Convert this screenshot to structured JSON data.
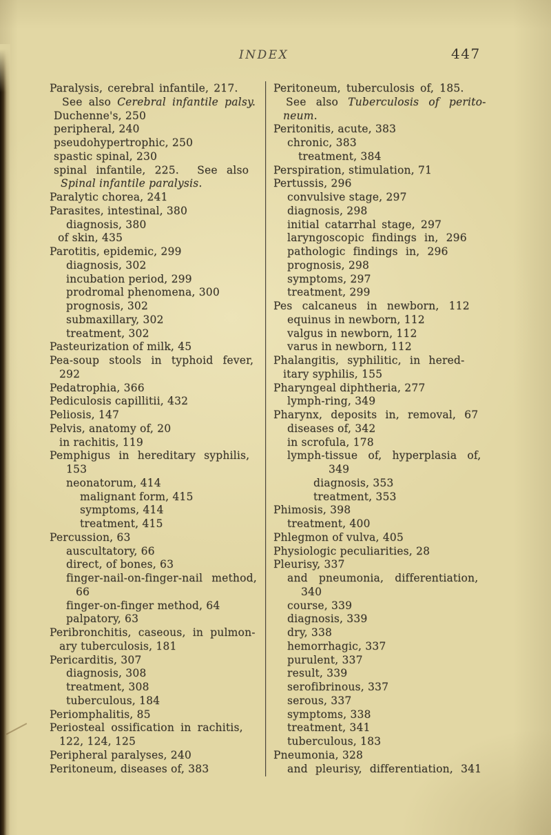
{
  "header": {
    "title": "INDEX",
    "page_number": "447"
  },
  "colors": {
    "paper": "#e2d7a4",
    "ink": "#3a352b",
    "divider": "#4a463b",
    "edge": "#181007"
  },
  "columns": {
    "left": [
      {
        "ind": 0,
        "ws": 2,
        "seg": [
          "Paralysis, cerebral infantile, 217."
        ]
      },
      {
        "ind": 18,
        "ws": 4,
        "seg": [
          "See also ",
          {
            "t": "Cerebral infantile palsy.",
            "i": true
          }
        ]
      },
      {
        "ind": 6,
        "seg": [
          "Duchenne's, 250"
        ]
      },
      {
        "ind": 6,
        "seg": [
          "peripheral, 240"
        ]
      },
      {
        "ind": 6,
        "seg": [
          "pseudohypertrophic, 250"
        ]
      },
      {
        "ind": 6,
        "seg": [
          "spastic spinal, 230"
        ]
      },
      {
        "ind": 6,
        "ws": 8,
        "seg": [
          "spinal infantile, 225.  See also"
        ]
      },
      {
        "ind": 16,
        "seg": [
          {
            "t": "Spinal infantile paralysis.",
            "i": true
          }
        ]
      },
      {
        "ind": 0,
        "seg": [
          "Paralytic chorea, 241"
        ]
      },
      {
        "ind": 0,
        "seg": [
          "Parasites, intestinal, 380"
        ]
      },
      {
        "ind": 24,
        "seg": [
          "diagnosis, 380"
        ]
      },
      {
        "ind": 12,
        "seg": [
          "of skin, 435"
        ]
      },
      {
        "ind": 0,
        "seg": [
          "Parotitis, epidemic, 299"
        ]
      },
      {
        "ind": 24,
        "seg": [
          "diagnosis, 302"
        ]
      },
      {
        "ind": 24,
        "seg": [
          "incubation period, 299"
        ]
      },
      {
        "ind": 24,
        "seg": [
          "prodromal phenomena, 300"
        ]
      },
      {
        "ind": 24,
        "seg": [
          "prognosis, 302"
        ]
      },
      {
        "ind": 24,
        "seg": [
          "submaxillary, 302"
        ]
      },
      {
        "ind": 24,
        "seg": [
          "treatment, 302"
        ]
      },
      {
        "ind": 0,
        "seg": [
          "Pasteurization of milk, 45"
        ]
      },
      {
        "ind": 0,
        "ws": 9,
        "seg": [
          "Pea-soup stools in typhoid fever,"
        ]
      },
      {
        "ind": 14,
        "seg": [
          "292"
        ]
      },
      {
        "ind": 0,
        "seg": [
          "Pedatrophia, 366"
        ]
      },
      {
        "ind": 0,
        "seg": [
          "Pediculosis capillitii, 432"
        ]
      },
      {
        "ind": 0,
        "seg": [
          "Peliosis, 147"
        ]
      },
      {
        "ind": 0,
        "seg": [
          "Pelvis, anatomy of, 20"
        ]
      },
      {
        "ind": 14,
        "seg": [
          "in rachitis, 119"
        ]
      },
      {
        "ind": 0,
        "ws": 7,
        "seg": [
          "Pemphigus in hereditary syphilis,"
        ]
      },
      {
        "ind": 24,
        "seg": [
          "153"
        ]
      },
      {
        "ind": 24,
        "seg": [
          "neonatorum, 414"
        ]
      },
      {
        "ind": 44,
        "seg": [
          "malignant form, 415"
        ]
      },
      {
        "ind": 44,
        "seg": [
          "symptoms, 414"
        ]
      },
      {
        "ind": 44,
        "seg": [
          "treatment, 415"
        ]
      },
      {
        "ind": 0,
        "seg": [
          "Percussion, 63"
        ]
      },
      {
        "ind": 24,
        "seg": [
          "auscultatory, 66"
        ]
      },
      {
        "ind": 24,
        "seg": [
          "direct, of bones, 63"
        ]
      },
      {
        "ind": 24,
        "ws": 8,
        "seg": [
          "finger-nail-on-finger-nail method,"
        ]
      },
      {
        "ind": 38,
        "seg": [
          "66"
        ]
      },
      {
        "ind": 24,
        "seg": [
          "finger-on-finger method, 64"
        ]
      },
      {
        "ind": 24,
        "seg": [
          "palpatory, 63"
        ]
      },
      {
        "ind": 0,
        "ws": 5,
        "seg": [
          "Peribronchitis, caseous, in pulmon-"
        ]
      },
      {
        "ind": 14,
        "seg": [
          "ary tuberculosis, 181"
        ]
      },
      {
        "ind": 0,
        "seg": [
          "Pericarditis, 307"
        ]
      },
      {
        "ind": 24,
        "seg": [
          "diagnosis, 308"
        ]
      },
      {
        "ind": 24,
        "seg": [
          "treatment, 308"
        ]
      },
      {
        "ind": 24,
        "seg": [
          "tuberculous, 184"
        ]
      },
      {
        "ind": 0,
        "seg": [
          "Periomphalitis, 85"
        ]
      },
      {
        "ind": 0,
        "ws": 4,
        "seg": [
          "Periosteal ossification in rachitis,"
        ]
      },
      {
        "ind": 14,
        "seg": [
          "122, 124, 125"
        ]
      },
      {
        "ind": 0,
        "seg": [
          "Peripheral paralyses, 240"
        ]
      },
      {
        "ind": 0,
        "seg": [
          "Peritoneum, diseases of, 383"
        ]
      }
    ],
    "right": [
      {
        "ind": 0,
        "ws": 3,
        "seg": [
          "Peritoneum, tuberculosis of, 185."
        ]
      },
      {
        "ind": 18,
        "ws": 9,
        "seg": [
          "See also ",
          {
            "t": "Tuberculosis of perito-",
            "i": true
          }
        ]
      },
      {
        "ind": 14,
        "seg": [
          {
            "t": "neum.",
            "i": true
          }
        ]
      },
      {
        "ind": 0,
        "seg": [
          "Peritonitis, acute, 383"
        ]
      },
      {
        "ind": 20,
        "seg": [
          "chronic, 383"
        ]
      },
      {
        "ind": 36,
        "seg": [
          "treatment, 384"
        ]
      },
      {
        "ind": 0,
        "seg": [
          "Perspiration, stimulation, 71"
        ]
      },
      {
        "ind": 0,
        "seg": [
          "Pertussis, 296"
        ]
      },
      {
        "ind": 20,
        "seg": [
          "convulsive stage, 297"
        ]
      },
      {
        "ind": 20,
        "seg": [
          "diagnosis, 298"
        ]
      },
      {
        "ind": 20,
        "ws": 3,
        "seg": [
          "initial catarrhal stage, 297"
        ]
      },
      {
        "ind": 20,
        "ws": 6,
        "seg": [
          "laryngoscopic findings in, 296"
        ]
      },
      {
        "ind": 20,
        "ws": 6,
        "seg": [
          "pathologic findings in, 296"
        ]
      },
      {
        "ind": 20,
        "seg": [
          "prognosis, 298"
        ]
      },
      {
        "ind": 20,
        "seg": [
          "symptoms, 297"
        ]
      },
      {
        "ind": 20,
        "seg": [
          "treatment, 299"
        ]
      },
      {
        "ind": 0,
        "ws": 9,
        "seg": [
          "Pes calcaneus in newborn, 112"
        ]
      },
      {
        "ind": 20,
        "seg": [
          "equinus in newborn, 112"
        ]
      },
      {
        "ind": 20,
        "seg": [
          "valgus in newborn, 112"
        ]
      },
      {
        "ind": 20,
        "seg": [
          "varus in newborn, 112"
        ]
      },
      {
        "ind": 0,
        "ws": 7,
        "seg": [
          "Phalangitis, syphilitic, in hered-"
        ]
      },
      {
        "ind": 14,
        "seg": [
          "itary syphilis, 155"
        ]
      },
      {
        "ind": 0,
        "seg": [
          "Pharyngeal diphtheria, 277"
        ]
      },
      {
        "ind": 20,
        "seg": [
          "lymph-ring, 349"
        ]
      },
      {
        "ind": 0,
        "ws": 7,
        "seg": [
          "Pharynx, deposits in, removal, 67"
        ]
      },
      {
        "ind": 20,
        "seg": [
          "diseases of, 342"
        ]
      },
      {
        "ind": 20,
        "seg": [
          "in scrofula, 178"
        ]
      },
      {
        "ind": 20,
        "ws": 10,
        "seg": [
          "lymph-tissue of, hyperplasia of,"
        ]
      },
      {
        "ind": 80,
        "seg": [
          "349"
        ]
      },
      {
        "ind": 58,
        "seg": [
          "diagnosis, 353"
        ]
      },
      {
        "ind": 58,
        "seg": [
          "treatment, 353"
        ]
      },
      {
        "ind": 0,
        "seg": [
          "Phimosis, 398"
        ]
      },
      {
        "ind": 20,
        "seg": [
          "treatment, 400"
        ]
      },
      {
        "ind": 0,
        "seg": [
          "Phlegmon of vulva, 405"
        ]
      },
      {
        "ind": 0,
        "seg": [
          "Physiologic peculiarities, 28"
        ]
      },
      {
        "ind": 0,
        "seg": [
          "Pleurisy, 337"
        ]
      },
      {
        "ind": 20,
        "ws": 11,
        "seg": [
          "and pneumonia, differentiation,"
        ]
      },
      {
        "ind": 40,
        "seg": [
          "340"
        ]
      },
      {
        "ind": 20,
        "seg": [
          "course, 339"
        ]
      },
      {
        "ind": 20,
        "seg": [
          "diagnosis, 339"
        ]
      },
      {
        "ind": 20,
        "seg": [
          "dry, 338"
        ]
      },
      {
        "ind": 20,
        "seg": [
          "hemorrhagic, 337"
        ]
      },
      {
        "ind": 20,
        "seg": [
          "purulent, 337"
        ]
      },
      {
        "ind": 20,
        "seg": [
          "result, 339"
        ]
      },
      {
        "ind": 20,
        "seg": [
          "serofibrinous, 337"
        ]
      },
      {
        "ind": 20,
        "seg": [
          "serous, 337"
        ]
      },
      {
        "ind": 20,
        "seg": [
          "symptoms, 338"
        ]
      },
      {
        "ind": 20,
        "seg": [
          "treatment, 341"
        ]
      },
      {
        "ind": 20,
        "seg": [
          "tuberculous, 183"
        ]
      },
      {
        "ind": 0,
        "seg": [
          "Pneumonia, 328"
        ]
      },
      {
        "ind": 20,
        "ws": 6,
        "seg": [
          "and pleurisy, differentiation, 341"
        ]
      }
    ]
  }
}
